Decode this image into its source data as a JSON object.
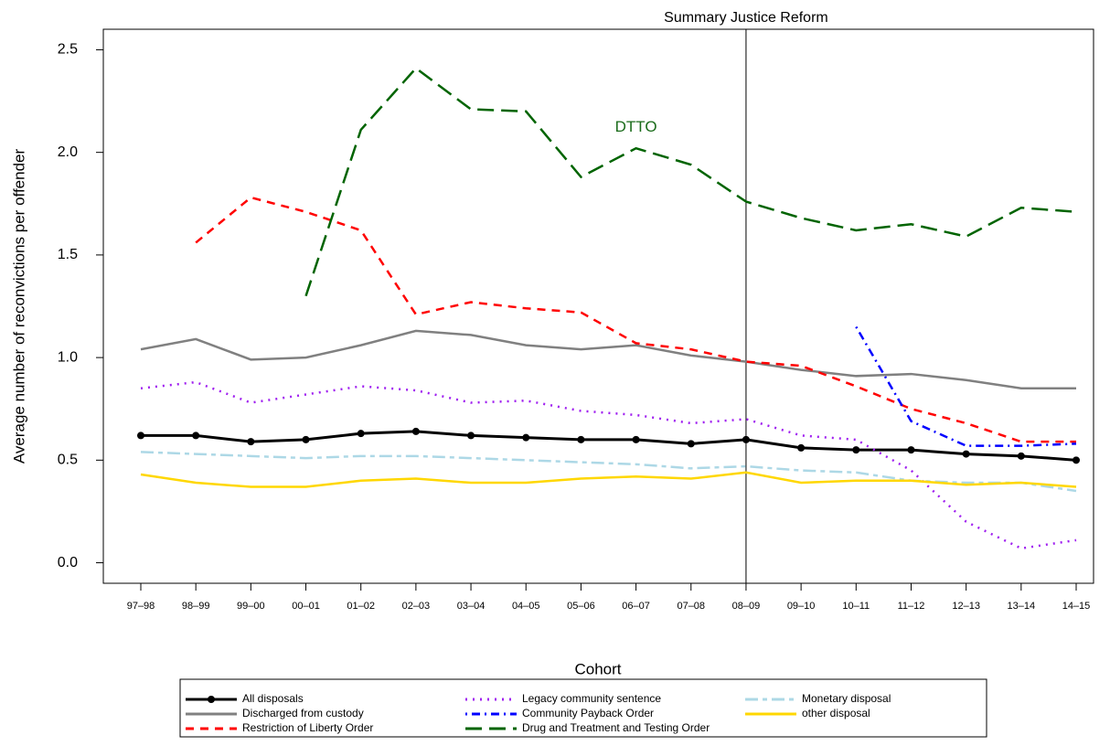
{
  "chart_data": {
    "type": "line",
    "xlabel": "Cohort",
    "ylabel": "Average number of reconvictions per offender",
    "categories": [
      "97–98",
      "98–99",
      "99–00",
      "00–01",
      "01–02",
      "02–03",
      "03–04",
      "04–05",
      "05–06",
      "06–07",
      "07–08",
      "08–09",
      "09–10",
      "10–11",
      "11–12",
      "12–13",
      "13–14",
      "14–15"
    ],
    "ylim": [
      -0.1,
      2.6
    ],
    "yticks": [
      {
        "value": 0,
        "label": "0.0"
      },
      0.5,
      {
        "value": 1,
        "label": "1.0"
      },
      1.5,
      {
        "value": 2,
        "label": "2.0"
      },
      2.5
    ],
    "vline": {
      "x": "08–09",
      "label": "Summary Justice Reform"
    },
    "annotations": [
      {
        "text": "DTTO",
        "x": "06–07",
        "y": 2.12,
        "color": "#1a6b1a"
      }
    ],
    "series": [
      {
        "name": "All disposals",
        "color": "#000000",
        "dash": "solid",
        "marker": "circle",
        "values": [
          0.62,
          0.62,
          0.59,
          0.6,
          0.63,
          0.64,
          0.62,
          0.61,
          0.6,
          0.6,
          0.58,
          0.6,
          0.56,
          0.55,
          0.55,
          0.53,
          0.52,
          0.5
        ]
      },
      {
        "name": "Discharged from custody",
        "color": "#808080",
        "dash": "solid",
        "values": [
          1.04,
          1.09,
          0.99,
          1.0,
          1.06,
          1.13,
          1.11,
          1.06,
          1.04,
          1.06,
          1.01,
          0.98,
          0.94,
          0.91,
          0.92,
          0.89,
          0.85,
          0.85
        ]
      },
      {
        "name": "Restriction of Liberty Order",
        "color": "#ff0000",
        "dash": "dashed",
        "values": [
          null,
          1.56,
          1.78,
          1.71,
          1.62,
          1.21,
          1.27,
          1.24,
          1.22,
          1.07,
          1.04,
          0.98,
          0.96,
          0.86,
          0.75,
          0.68,
          0.59,
          0.59
        ]
      },
      {
        "name": "Legacy community sentence",
        "color": "#a020f0",
        "dash": "dotted",
        "values": [
          0.85,
          0.88,
          0.78,
          0.82,
          0.86,
          0.84,
          0.78,
          0.79,
          0.74,
          0.72,
          0.68,
          0.7,
          0.62,
          0.6,
          0.45,
          0.2,
          0.07,
          0.11
        ]
      },
      {
        "name": "Community Payback Order",
        "color": "#0000ff",
        "dash": "dotdash",
        "values": [
          null,
          null,
          null,
          null,
          null,
          null,
          null,
          null,
          null,
          null,
          null,
          null,
          null,
          1.15,
          0.69,
          0.57,
          0.57,
          0.58
        ]
      },
      {
        "name": "Drug and Treatment and Testing Order",
        "color": "#006400",
        "dash": "longdash",
        "values": [
          null,
          null,
          null,
          1.3,
          2.11,
          2.41,
          2.21,
          2.2,
          1.88,
          2.02,
          1.94,
          1.76,
          1.68,
          1.62,
          1.65,
          1.59,
          1.73,
          1.71
        ]
      },
      {
        "name": "Monetary disposal",
        "color": "#add8e6",
        "dash": "twodash",
        "values": [
          0.54,
          0.53,
          0.52,
          0.51,
          0.52,
          0.52,
          0.51,
          0.5,
          0.49,
          0.48,
          0.46,
          0.47,
          0.45,
          0.44,
          0.4,
          0.39,
          0.39,
          0.35
        ]
      },
      {
        "name": "other disposal",
        "color": "#ffd700",
        "dash": "solid",
        "values": [
          0.43,
          0.39,
          0.37,
          0.37,
          0.4,
          0.41,
          0.39,
          0.39,
          0.41,
          0.42,
          0.41,
          0.44,
          0.39,
          0.4,
          0.4,
          0.38,
          0.39,
          0.37
        ]
      }
    ]
  }
}
